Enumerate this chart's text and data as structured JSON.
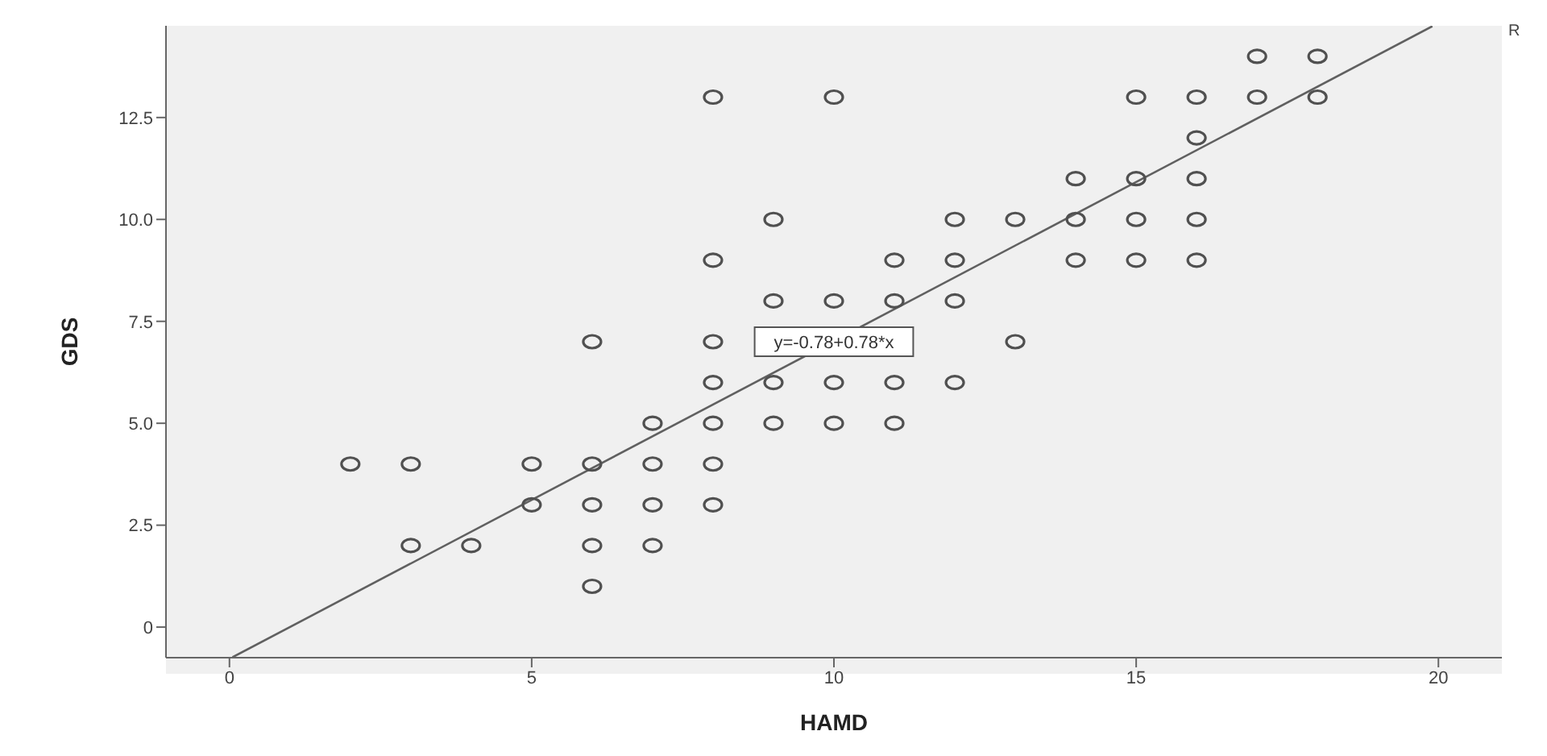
{
  "chart_data": {
    "type": "scatter",
    "xlabel": "HAMD",
    "ylabel": "GDS",
    "marker": "circle",
    "xlim": [
      -1.05,
      21.05
    ],
    "xticks": [
      0,
      5,
      10,
      15,
      20
    ],
    "ylim": [
      -0.75,
      14.75
    ],
    "yticks": [
      0,
      2.5,
      {
        "value": 5,
        "label": "5.0"
      },
      7.5,
      {
        "value": 10,
        "label": "10.0"
      },
      12.5
    ],
    "series": [
      {
        "color": "#505050",
        "x": [
          17,
          18,
          8,
          10,
          15,
          16,
          17,
          18,
          16,
          14,
          15,
          16,
          9,
          12,
          13,
          14,
          15,
          16,
          8,
          11,
          12,
          14,
          15,
          16,
          9,
          10,
          11,
          12,
          6,
          8,
          13,
          8,
          9,
          10,
          11,
          12,
          7,
          8,
          9,
          10,
          11,
          2,
          3,
          5,
          6,
          7,
          8,
          5,
          6,
          7,
          8,
          3,
          4,
          6,
          7,
          6
        ],
        "values": [
          14,
          14,
          13,
          13,
          13,
          13,
          13,
          13,
          12,
          11,
          11,
          11,
          10,
          10,
          10,
          10,
          10,
          10,
          9,
          9,
          9,
          9,
          9,
          9,
          8,
          8,
          8,
          8,
          7,
          7,
          7,
          6,
          6,
          6,
          6,
          6,
          5,
          5,
          5,
          5,
          5,
          4,
          4,
          4,
          4,
          4,
          4,
          3,
          3,
          3,
          3,
          2,
          2,
          2,
          2,
          1
        ]
      },
      {
        "type": "line",
        "color": "#606060",
        "marker": "none",
        "x": [
          0.05,
          19.9
        ],
        "values": [
          -0.74,
          14.74
        ]
      }
    ],
    "annotations": [
      {
        "text": "y=-0.78+0.78*x",
        "x": 10,
        "y": 7
      },
      "R"
    ]
  }
}
